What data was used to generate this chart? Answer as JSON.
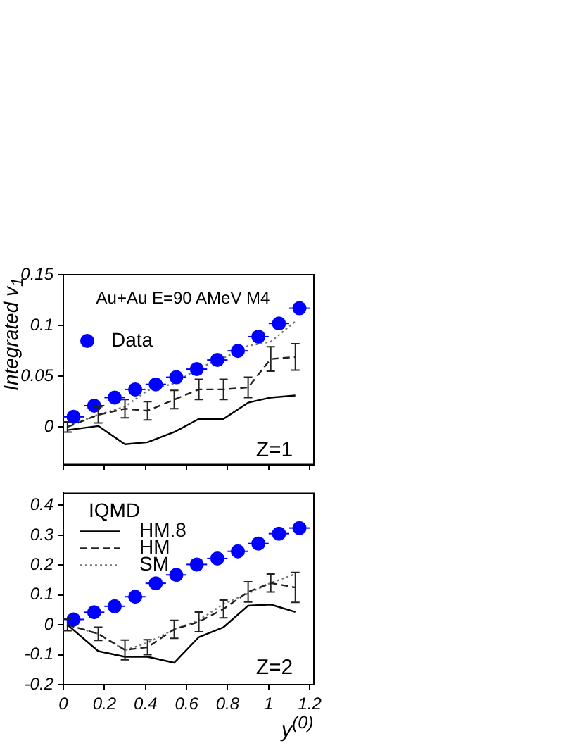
{
  "chart_data": [
    {
      "type": "line",
      "ylabel": "Integrated v$_{1}$",
      "xlim": [
        0,
        1.22
      ],
      "xticks": [
        0,
        0.2,
        0.4,
        0.6,
        0.8,
        1,
        1.2
      ],
      "ylim": [
        -0.037,
        0.15
      ],
      "yticks": [
        0,
        0.05,
        0.1,
        0.15
      ],
      "tick_labels": "y",
      "grid": false,
      "legend": "top left",
      "annotations": [
        "Au+Au E=90 AMeV M4",
        "Z=1"
      ],
      "series": [
        {
          "name": "Data",
          "type": "scatter",
          "color": "#0000ff",
          "marker": "circle",
          "x": [
            0.05,
            0.15,
            0.25,
            0.35,
            0.45,
            0.55,
            0.65,
            0.75,
            0.85,
            0.95,
            1.05,
            1.15
          ],
          "values": [
            0.01,
            0.021,
            0.029,
            0.037,
            0.042,
            0.049,
            0.057,
            0.066,
            0.075,
            0.089,
            0.102,
            0.117
          ],
          "xerrors": [
            0.05,
            0.05,
            0.05,
            0.05,
            0.05,
            0.05,
            0.05,
            0.05,
            0.05,
            0.05,
            0.05,
            0.05
          ]
        },
        {
          "type": "line",
          "color": "#000000",
          "line_style": "solid",
          "marker": "none",
          "x": [
            0.02,
            0.17,
            0.3,
            0.41,
            0.54,
            0.66,
            0.78,
            0.9,
            1.01,
            1.13
          ],
          "values": [
            -0.003,
            0.001,
            -0.017,
            -0.015,
            -0.005,
            0.008,
            0.008,
            0.024,
            0.029,
            0.031
          ]
        },
        {
          "type": "line",
          "color": "#222222",
          "line_style": "dashed",
          "marker": "none",
          "x": [
            0.02,
            0.17,
            0.3,
            0.41,
            0.54,
            0.66,
            0.78,
            0.9,
            1.01,
            1.13
          ],
          "values": [
            0.0,
            0.012,
            0.018,
            0.016,
            0.027,
            0.037,
            0.037,
            0.039,
            0.067,
            0.069
          ],
          "errors": [
            0.005,
            0.008,
            0.009,
            0.009,
            0.009,
            0.01,
            0.01,
            0.01,
            0.012,
            0.013
          ]
        },
        {
          "type": "line",
          "color": "#777777",
          "line_style": "dotted",
          "marker": "none",
          "x": [
            0.02,
            0.17,
            0.3,
            0.41,
            0.54,
            0.66,
            0.78,
            0.9,
            1.01,
            1.13
          ],
          "values": [
            0.001,
            0.012,
            0.02,
            0.036,
            0.043,
            0.058,
            0.068,
            0.08,
            0.084,
            0.104
          ]
        }
      ]
    },
    {
      "type": "line",
      "xlabel": "y$^{(0)}$",
      "xlim": [
        0,
        1.22
      ],
      "xticks": [
        0,
        0.2,
        0.4,
        0.6,
        0.8,
        1,
        1.2
      ],
      "ylim": [
        -0.2,
        0.44
      ],
      "yticks": [
        -0.2,
        -0.1,
        0,
        0.1,
        0.2,
        0.3,
        0.4
      ],
      "grid": false,
      "legend": "top left",
      "legend_title": "IQMD",
      "annotations": [
        "Z=2"
      ],
      "series": [
        {
          "type": "scatter",
          "color": "#0000ff",
          "marker": "circle",
          "x": [
            0.05,
            0.15,
            0.25,
            0.35,
            0.45,
            0.55,
            0.65,
            0.75,
            0.85,
            0.95,
            1.05,
            1.15
          ],
          "values": [
            0.018,
            0.042,
            0.062,
            0.094,
            0.139,
            0.167,
            0.202,
            0.222,
            0.246,
            0.272,
            0.305,
            0.324
          ],
          "xerrors": [
            0.05,
            0.05,
            0.05,
            0.05,
            0.05,
            0.05,
            0.05,
            0.05,
            0.05,
            0.05,
            0.05,
            0.05
          ]
        },
        {
          "name": "HM.8",
          "type": "line",
          "color": "#000000",
          "line_style": "solid",
          "marker": "none",
          "x": [
            0.02,
            0.17,
            0.3,
            0.41,
            0.54,
            0.66,
            0.78,
            0.9,
            1.01,
            1.13
          ],
          "values": [
            0.0,
            -0.088,
            -0.107,
            -0.107,
            -0.127,
            -0.041,
            -0.008,
            0.064,
            0.068,
            0.043
          ]
        },
        {
          "name": "HM",
          "type": "line",
          "color": "#222222",
          "line_style": "dashed",
          "marker": "none",
          "x": [
            0.02,
            0.17,
            0.3,
            0.41,
            0.54,
            0.66,
            0.78,
            0.9,
            1.01,
            1.13
          ],
          "values": [
            0.0,
            -0.03,
            -0.084,
            -0.075,
            -0.015,
            0.01,
            0.053,
            0.11,
            0.14,
            0.125
          ],
          "errors": [
            0.02,
            0.022,
            0.033,
            0.025,
            0.03,
            0.033,
            0.03,
            0.034,
            0.03,
            0.05
          ]
        },
        {
          "name": "SM",
          "type": "line",
          "color": "#777777",
          "line_style": "dotted",
          "marker": "none",
          "x": [
            0.02,
            0.17,
            0.3,
            0.41,
            0.54,
            0.66,
            0.78,
            0.9,
            1.01,
            1.13
          ],
          "values": [
            0.0,
            -0.03,
            -0.085,
            -0.06,
            -0.015,
            0.015,
            0.07,
            0.105,
            0.14,
            0.17
          ]
        }
      ]
    }
  ]
}
